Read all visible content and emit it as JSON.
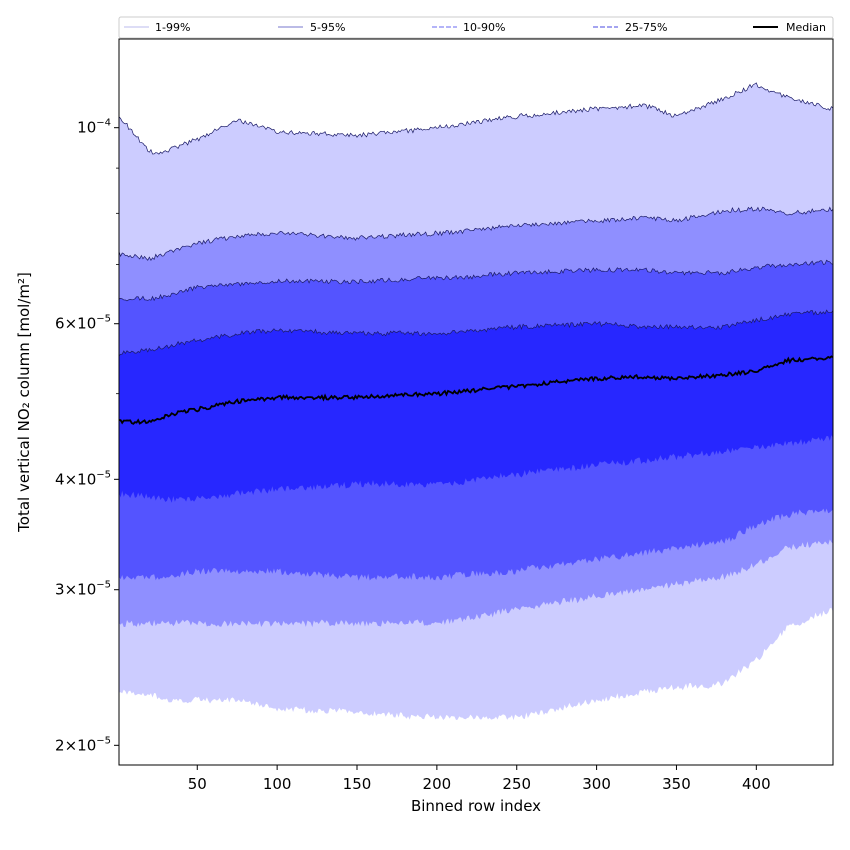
{
  "chart_data": {
    "type": "area",
    "title": "",
    "xlabel": "Binned row index",
    "ylabel": "Total vertical NO₂ column [mol/m²]",
    "xlim": [
      1,
      448
    ],
    "ylim": [
      1.9e-05,
      0.000126
    ],
    "yscale": "log",
    "grid": false,
    "legend_position": "top",
    "x_ticks": [
      50,
      100,
      150,
      200,
      250,
      300,
      350,
      400
    ],
    "y_major_ticks": [
      {
        "value": 2e-05,
        "mantissa": "2",
        "exp": "−5"
      },
      {
        "value": 3e-05,
        "mantissa": "3",
        "exp": "−5"
      },
      {
        "value": 4e-05,
        "mantissa": "4",
        "exp": "−5"
      },
      {
        "value": 6e-05,
        "mantissa": "6",
        "exp": "−5"
      },
      {
        "value": 0.0001,
        "mantissa": "",
        "exp": "−4"
      }
    ],
    "y_minor_ticks": [
      5e-05,
      7e-05,
      8e-05,
      9e-05
    ],
    "x_knots": [
      1,
      20,
      30,
      50,
      75,
      100,
      150,
      200,
      250,
      300,
      330,
      350,
      380,
      400,
      420,
      448
    ],
    "bands": [
      {
        "name": "1-99%",
        "fill": "#ccccff",
        "line_color": "#bbbbee",
        "line_style": "solid",
        "lower": [
          2.3e-05,
          2.28e-05,
          2.25e-05,
          2.25e-05,
          2.25e-05,
          2.2e-05,
          2.18e-05,
          2.15e-05,
          2.15e-05,
          2.25e-05,
          2.3e-05,
          2.33e-05,
          2.35e-05,
          2.5e-05,
          2.72e-05,
          2.85e-05
        ],
        "upper": [
          0.000103,
          9.4e-05,
          9.4e-05,
          9.7e-05,
          0.000102,
          9.9e-05,
          9.8e-05,
          0.0001,
          0.000103,
          0.000105,
          0.000106,
          0.000103,
          0.000108,
          0.000112,
          0.000108,
          0.000105
        ]
      },
      {
        "name": "5-95%",
        "fill": "#8f8fff",
        "line_color": "#7777cc",
        "line_style": "solid",
        "lower": [
          2.75e-05,
          2.75e-05,
          2.75e-05,
          2.75e-05,
          2.75e-05,
          2.75e-05,
          2.75e-05,
          2.75e-05,
          2.85e-05,
          2.95e-05,
          3e-05,
          3.05e-05,
          3.1e-05,
          3.2e-05,
          3.35e-05,
          3.4e-05
        ],
        "upper": [
          7.2e-05,
          7.1e-05,
          7.2e-05,
          7.4e-05,
          7.55e-05,
          7.6e-05,
          7.5e-05,
          7.6e-05,
          7.75e-05,
          7.85e-05,
          7.9e-05,
          7.85e-05,
          8.05e-05,
          8.1e-05,
          8e-05,
          8.1e-05
        ]
      },
      {
        "name": "10-90%",
        "fill": "#5454ff",
        "line_color": "#6a6af0",
        "line_style": "dashed",
        "lower": [
          3.1e-05,
          3.1e-05,
          3.1e-05,
          3.15e-05,
          3.15e-05,
          3.15e-05,
          3.1e-05,
          3.1e-05,
          3.15e-05,
          3.25e-05,
          3.3e-05,
          3.35e-05,
          3.4e-05,
          3.55e-05,
          3.65e-05,
          3.7e-05
        ],
        "upper": [
          6.4e-05,
          6.4e-05,
          6.45e-05,
          6.6e-05,
          6.65e-05,
          6.7e-05,
          6.7e-05,
          6.75e-05,
          6.85e-05,
          6.9e-05,
          6.9e-05,
          6.85e-05,
          6.85e-05,
          6.95e-05,
          7e-05,
          7.05e-05
        ]
      },
      {
        "name": "25-75%",
        "fill": "#2727ff",
        "line_color": "#4848e0",
        "line_style": "dashed",
        "lower": [
          3.85e-05,
          3.82e-05,
          3.8e-05,
          3.8e-05,
          3.85e-05,
          3.9e-05,
          3.95e-05,
          3.95e-05,
          4.05e-05,
          4.15e-05,
          4.2e-05,
          4.25e-05,
          4.3e-05,
          4.35e-05,
          4.4e-05,
          4.45e-05
        ],
        "upper": [
          5.55e-05,
          5.6e-05,
          5.65e-05,
          5.75e-05,
          5.85e-05,
          5.9e-05,
          5.85e-05,
          5.85e-05,
          5.95e-05,
          6e-05,
          5.95e-05,
          5.95e-05,
          5.95e-05,
          6.05e-05,
          6.15e-05,
          6.2e-05
        ]
      }
    ],
    "median": {
      "name": "Median",
      "color": "#000000",
      "values": [
        4.65e-05,
        4.65e-05,
        4.72e-05,
        4.8e-05,
        4.9e-05,
        4.95e-05,
        4.95e-05,
        5e-05,
        5.1e-05,
        5.2e-05,
        5.22e-05,
        5.2e-05,
        5.25e-05,
        5.3e-05,
        5.45e-05,
        5.5e-05
      ]
    }
  }
}
